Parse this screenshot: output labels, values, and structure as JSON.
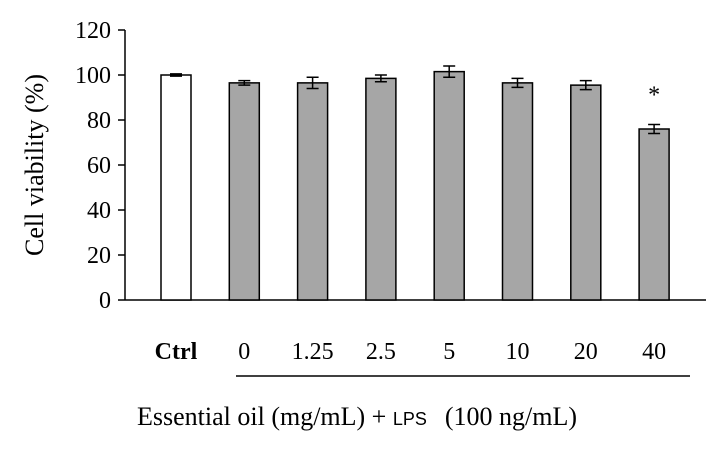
{
  "chart_data": {
    "type": "bar",
    "categories": [
      "Ctrl",
      "0",
      "1.25",
      "2.5",
      "5",
      "10",
      "20",
      "40"
    ],
    "values": [
      100,
      96.5,
      96.5,
      98.5,
      101.5,
      96.5,
      95.5,
      76
    ],
    "errors": [
      0.5,
      1,
      2.5,
      1.5,
      2.5,
      2,
      2,
      2
    ],
    "bar_colors": [
      "#ffffff",
      "#a6a6a6",
      "#a6a6a6",
      "#a6a6a6",
      "#a6a6a6",
      "#a6a6a6",
      "#a6a6a6",
      "#a6a6a6"
    ],
    "annotations": [
      {
        "category": "40",
        "text": "*"
      }
    ],
    "ylabel": "Cell viability (%)",
    "ylim": [
      0,
      120
    ],
    "yticks": [
      0,
      20,
      40,
      60,
      80,
      100,
      120
    ],
    "xlabel_group": {
      "text_pre": "Essential oil (mg/mL) + ",
      "text_lps": "LPS",
      "text_post": "(100 ng/mL)"
    },
    "grid": false
  }
}
